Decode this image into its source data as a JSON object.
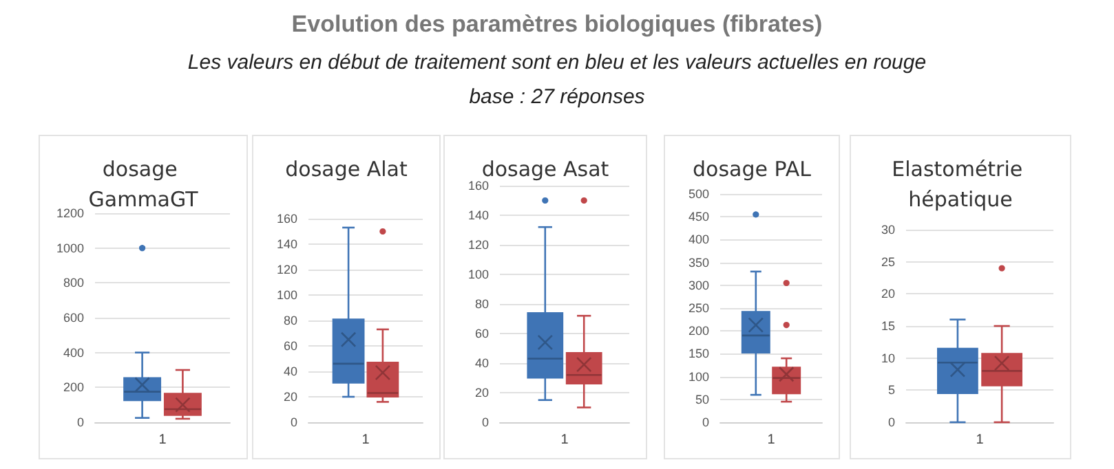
{
  "chart_data": [
    {
      "type": "other",
      "title": "Evolution des paramètres biologiques (fibrates)",
      "subtitle": "Les valeurs en début de  traitement sont en bleu et les valeurs actuelles en rouge",
      "annotations": [
        "base : 27 réponses"
      ]
    },
    {
      "type": "box",
      "title": "dosage GammaGT",
      "categories": [
        "1"
      ],
      "ylim": [
        0,
        1200
      ],
      "yticks": [
        0,
        200,
        400,
        600,
        800,
        1000,
        1200
      ],
      "grid": "y",
      "series": [
        {
          "color": "#3f74b5",
          "boxes": [
            {
              "low": 25,
              "q1": 125,
              "median": 175,
              "q3": 255,
              "high": 400,
              "mean": 215,
              "outliers": [
                1000
              ]
            }
          ]
        },
        {
          "color": "#c0474a",
          "boxes": [
            {
              "low": 20,
              "q1": 40,
              "median": 75,
              "q3": 165,
              "high": 300,
              "mean": 100
            }
          ]
        }
      ]
    },
    {
      "type": "box",
      "title": "dosage Alat",
      "categories": [
        "1"
      ],
      "ylim": [
        0,
        160
      ],
      "yticks": [
        0,
        20,
        40,
        60,
        80,
        100,
        120,
        140,
        160
      ],
      "grid": "y",
      "series": [
        {
          "color": "#3f74b5",
          "boxes": [
            {
              "low": 20,
              "q1": 31,
              "median": 46,
              "q3": 81,
              "high": 153,
              "mean": 65
            }
          ]
        },
        {
          "color": "#c0474a",
          "boxes": [
            {
              "low": 16,
              "q1": 20,
              "median": 23,
              "q3": 47,
              "high": 73,
              "mean": 39,
              "outliers": [
                150
              ]
            }
          ]
        }
      ]
    },
    {
      "type": "box",
      "title": "dosage Asat",
      "categories": [
        "1"
      ],
      "ylim": [
        0,
        160
      ],
      "yticks": [
        0,
        20,
        40,
        60,
        80,
        100,
        120,
        140,
        160
      ],
      "grid": "y",
      "series": [
        {
          "color": "#3f74b5",
          "boxes": [
            {
              "low": 15,
              "q1": 30,
              "median": 43,
              "q3": 74,
              "high": 132,
              "mean": 54,
              "outliers": [
                150
              ]
            }
          ]
        },
        {
          "color": "#c0474a",
          "boxes": [
            {
              "low": 10,
              "q1": 26,
              "median": 32,
              "q3": 47,
              "high": 72,
              "mean": 39,
              "outliers": [
                150
              ]
            }
          ]
        }
      ]
    },
    {
      "type": "box",
      "title": "dosage PAL",
      "categories": [
        "1"
      ],
      "ylim": [
        0,
        500
      ],
      "yticks": [
        0,
        50,
        100,
        150,
        200,
        250,
        300,
        350,
        400,
        450,
        500
      ],
      "grid": "y",
      "series": [
        {
          "color": "#3f74b5",
          "boxes": [
            {
              "low": 60,
              "q1": 152,
              "median": 190,
              "q3": 242,
              "high": 330,
              "mean": 213,
              "outliers": [
                455
              ]
            }
          ]
        },
        {
          "color": "#c0474a",
          "boxes": [
            {
              "low": 45,
              "q1": 63,
              "median": 97,
              "q3": 120,
              "high": 140,
              "mean": 105,
              "outliers": [
                213,
                305
              ]
            }
          ]
        }
      ]
    },
    {
      "type": "box",
      "title": "Elastométrie hépatique",
      "categories": [
        "1"
      ],
      "ylim": [
        0,
        30
      ],
      "yticks": [
        0,
        5,
        10,
        15,
        20,
        25,
        30
      ],
      "grid": "y",
      "series": [
        {
          "color": "#3f74b5",
          "boxes": [
            {
              "low": 0,
              "q1": 4.5,
              "median": 9.3,
              "q3": 11.5,
              "high": 16,
              "mean": 8.2
            }
          ]
        },
        {
          "color": "#c0474a",
          "boxes": [
            {
              "low": 0,
              "q1": 5.7,
              "median": 8,
              "q3": 10.7,
              "high": 15,
              "mean": 9.2,
              "outliers": [
                24
              ]
            }
          ]
        }
      ]
    }
  ]
}
